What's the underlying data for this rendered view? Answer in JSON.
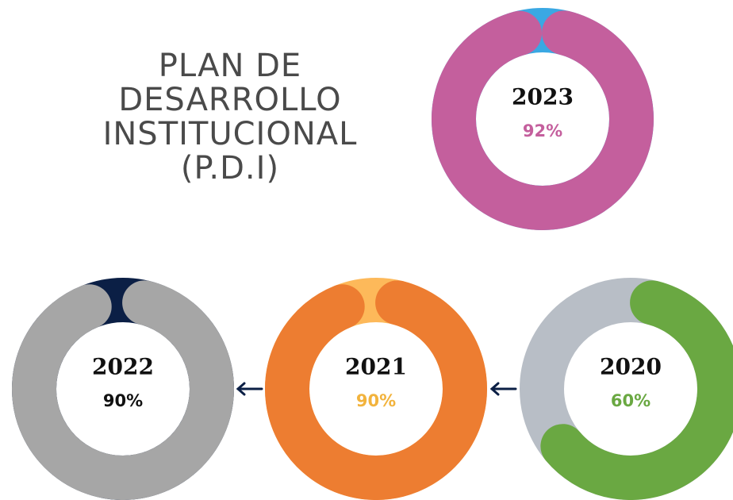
{
  "header": {
    "lines": [
      "PLAN DE",
      "DESARROLLO",
      "INSTITUCIONAL",
      "(P.D.I)"
    ]
  },
  "chart_data": [
    {
      "type": "donut",
      "title": "2023",
      "values": [
        92
      ],
      "value_labels": [
        "92%"
      ],
      "color": "#c45f9d",
      "track_color": "#3aa8e3",
      "label_color": "#c45f9d"
    },
    {
      "type": "donut",
      "title": "2022",
      "values": [
        90
      ],
      "value_labels": [
        "90%"
      ],
      "color": "#a6a6a6",
      "track_color": "#0b1f45",
      "label_color": "#111111"
    },
    {
      "type": "donut",
      "title": "2021",
      "values": [
        90
      ],
      "value_labels": [
        "90%"
      ],
      "color": "#ed7d31",
      "track_color": "#fdb95a",
      "label_color": "#f2b33d"
    },
    {
      "type": "donut",
      "title": "2020",
      "values": [
        60
      ],
      "value_labels": [
        "60%"
      ],
      "color": "#6aa842",
      "track_color": "#b8bec6",
      "label_color": "#6aa842"
    }
  ]
}
